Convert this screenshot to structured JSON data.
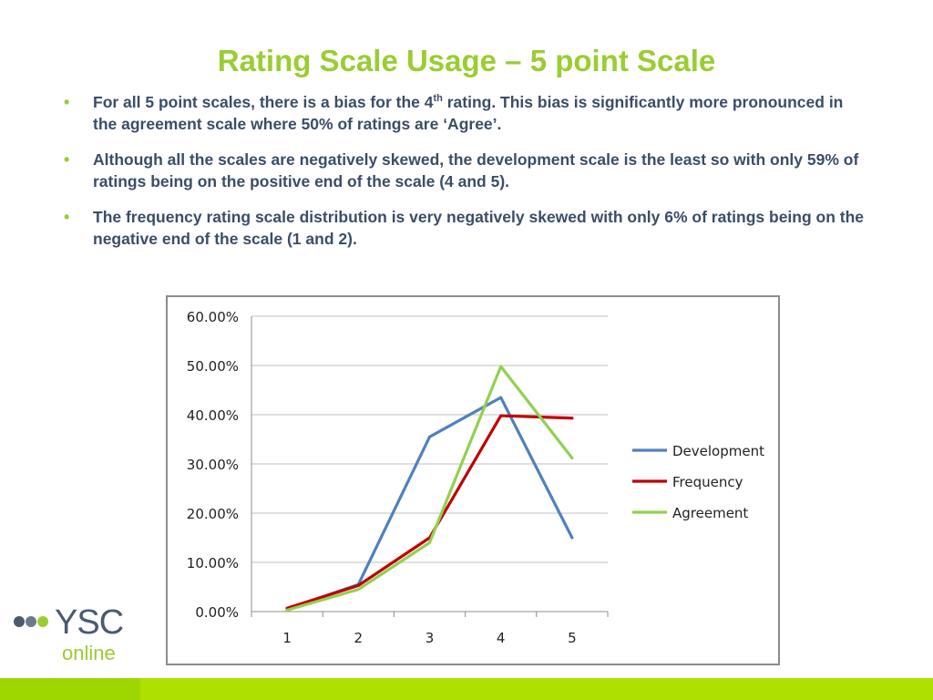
{
  "slide": {
    "title": "Rating Scale Usage – 5 point Scale",
    "bullets": [
      {
        "before": "For all 5 point scales, there is a bias for the 4",
        "sup": "th",
        "after": " rating. This bias is significantly more pronounced in the agreement scale where 50% of ratings are ‘Agree’."
      },
      {
        "before": "Although all the scales are negatively skewed, the development scale is the least so with only 59% of ratings being on the positive end of the scale (4 and 5).",
        "sup": "",
        "after": ""
      },
      {
        "before": "The frequency rating scale distribution is very negatively skewed with only 6% of ratings being on the negative end of the scale (1 and 2).",
        "sup": "",
        "after": ""
      }
    ],
    "bullet_glyph": "•",
    "accent_color": "#9acd32",
    "text_color": "#3a4e66"
  },
  "logo": {
    "text": "YSC",
    "subtext": "online"
  },
  "chart_data": {
    "type": "line",
    "categories": [
      "1",
      "2",
      "3",
      "4",
      "5"
    ],
    "series": [
      {
        "name": "Development",
        "color": "#4f81bd",
        "values": [
          0.5,
          5.5,
          35.5,
          43.5,
          15.0
        ]
      },
      {
        "name": "Frequency",
        "color": "#c00000",
        "values": [
          0.7,
          5.3,
          15.0,
          39.8,
          39.3
        ]
      },
      {
        "name": "Agreement",
        "color": "#92d050",
        "values": [
          0.3,
          4.5,
          14.0,
          49.8,
          31.2
        ]
      }
    ],
    "ylim": [
      0,
      60
    ],
    "yticks": [
      0,
      10,
      20,
      30,
      40,
      50,
      60
    ],
    "ytick_labels": [
      "0.00%",
      "10.00%",
      "20.00%",
      "30.00%",
      "40.00%",
      "50.00%",
      "60.00%"
    ],
    "grid": true,
    "legend": "right",
    "title": "",
    "xlabel": "",
    "ylabel": ""
  }
}
